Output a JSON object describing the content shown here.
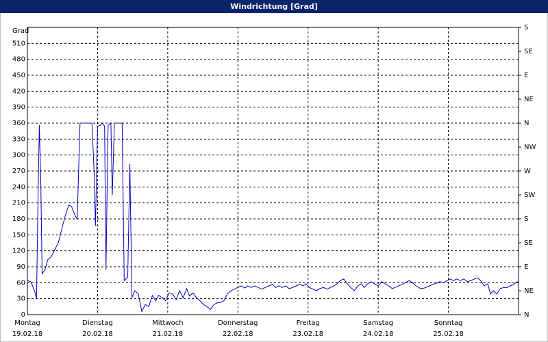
{
  "chart_data": {
    "type": "line",
    "title": "Windrichtung [Grad]",
    "ylabel": "Grad",
    "xlim": [
      0,
      7
    ],
    "xticks": [
      {
        "value": 0,
        "label": "Montag",
        "date": "19.02.18"
      },
      {
        "value": 1,
        "label": "Dienstag",
        "date": "20.02.18"
      },
      {
        "value": 2,
        "label": "Mittwoch",
        "date": "21.02.18"
      },
      {
        "value": 3,
        "label": "Donnerstag",
        "date": "22.02.18"
      },
      {
        "value": 4,
        "label": "Freitag",
        "date": "23.02.18"
      },
      {
        "value": 5,
        "label": "Samstag",
        "date": "24.02.18"
      },
      {
        "value": 6,
        "label": "Sonntag",
        "date": "25.02.18"
      }
    ],
    "ylim": [
      0,
      540
    ],
    "yticks": [
      0,
      30,
      60,
      90,
      120,
      150,
      180,
      210,
      240,
      270,
      300,
      330,
      360,
      390,
      420,
      450,
      480,
      510
    ],
    "y2lim": [
      0,
      540
    ],
    "y2ticks": [
      {
        "value": 0,
        "label": "N"
      },
      {
        "value": 45,
        "label": "NE"
      },
      {
        "value": 90,
        "label": "E"
      },
      {
        "value": 135,
        "label": "SE"
      },
      {
        "value": 180,
        "label": "S"
      },
      {
        "value": 225,
        "label": "SW"
      },
      {
        "value": 270,
        "label": "W"
      },
      {
        "value": 315,
        "label": "NW"
      },
      {
        "value": 360,
        "label": "N"
      },
      {
        "value": 405,
        "label": "NE"
      },
      {
        "value": 450,
        "label": "E"
      },
      {
        "value": 495,
        "label": "SE"
      },
      {
        "value": 540,
        "label": "S"
      }
    ],
    "grid": true,
    "series": [
      {
        "color": "#0000c0",
        "x": [
          0,
          0.05,
          0.1,
          0.13,
          0.15,
          0.17,
          0.19,
          0.21,
          0.25,
          0.29,
          0.34,
          0.39,
          0.44,
          0.49,
          0.54,
          0.59,
          0.63,
          0.68,
          0.71,
          0.75,
          0.83,
          0.92,
          0.95,
          0.97,
          1.0,
          1.04,
          1.07,
          1.1,
          1.12,
          1.15,
          1.19,
          1.21,
          1.24,
          1.29,
          1.35,
          1.38,
          1.43,
          1.46,
          1.49,
          1.53,
          1.58,
          1.63,
          1.68,
          1.73,
          1.78,
          1.83,
          1.87,
          1.92,
          1.97,
          2.02,
          2.07,
          2.12,
          2.17,
          2.22,
          2.27,
          2.31,
          2.36,
          2.41,
          2.46,
          2.51,
          2.56,
          2.61,
          2.66,
          2.7,
          2.75,
          2.8,
          2.85,
          2.9,
          2.95,
          3.0,
          3.05,
          3.1,
          3.14,
          3.19,
          3.24,
          3.29,
          3.34,
          3.39,
          3.44,
          3.49,
          3.54,
          3.58,
          3.63,
          3.68,
          3.73,
          3.78,
          3.83,
          3.88,
          3.93,
          3.97,
          4.02,
          4.07,
          4.12,
          4.17,
          4.22,
          4.27,
          4.32,
          4.37,
          4.41,
          4.46,
          4.51,
          4.56,
          4.61,
          4.66,
          4.71,
          4.76,
          4.8,
          4.85,
          4.9,
          4.95,
          5.0,
          5.05,
          5.1,
          5.15,
          5.2,
          5.24,
          5.29,
          5.34,
          5.39,
          5.44,
          5.49,
          5.54,
          5.59,
          5.63,
          5.68,
          5.73,
          5.78,
          5.83,
          5.88,
          5.93,
          5.98,
          6.03,
          6.07,
          6.12,
          6.17,
          6.22,
          6.27,
          6.32,
          6.37,
          6.42,
          6.46,
          6.51,
          6.56,
          6.6,
          6.64,
          6.69,
          6.74,
          6.79,
          6.84,
          6.88,
          6.93,
          6.98,
          7.0
        ],
        "values": [
          64,
          62,
          45,
          30,
          206,
          356,
          257,
          77,
          84,
          103,
          109,
          122,
          135,
          161,
          186,
          206,
          203,
          186,
          180,
          360,
          360,
          360,
          270,
          167,
          354,
          356,
          360,
          354,
          84,
          356,
          360,
          225,
          360,
          360,
          360,
          64,
          71,
          283,
          32,
          45,
          39,
          6,
          19,
          15,
          36,
          26,
          36,
          32,
          26,
          41,
          39,
          28,
          45,
          32,
          49,
          35,
          41,
          32,
          26,
          19,
          15,
          10,
          19,
          22,
          23,
          26,
          39,
          45,
          48,
          51,
          54,
          50,
          54,
          51,
          54,
          51,
          48,
          51,
          54,
          57,
          51,
          54,
          51,
          54,
          49,
          51,
          54,
          57,
          54,
          58,
          51,
          48,
          45,
          49,
          51,
          48,
          51,
          54,
          58,
          64,
          67,
          58,
          51,
          45,
          54,
          58,
          51,
          58,
          62,
          58,
          54,
          62,
          58,
          54,
          49,
          51,
          54,
          57,
          60,
          64,
          60,
          54,
          50,
          49,
          51,
          54,
          57,
          59,
          62,
          60,
          64,
          67,
          64,
          67,
          64,
          67,
          62,
          64,
          67,
          69,
          64,
          54,
          58,
          39,
          45,
          39,
          49,
          51,
          51,
          54,
          57,
          62,
          59
        ]
      }
    ]
  }
}
